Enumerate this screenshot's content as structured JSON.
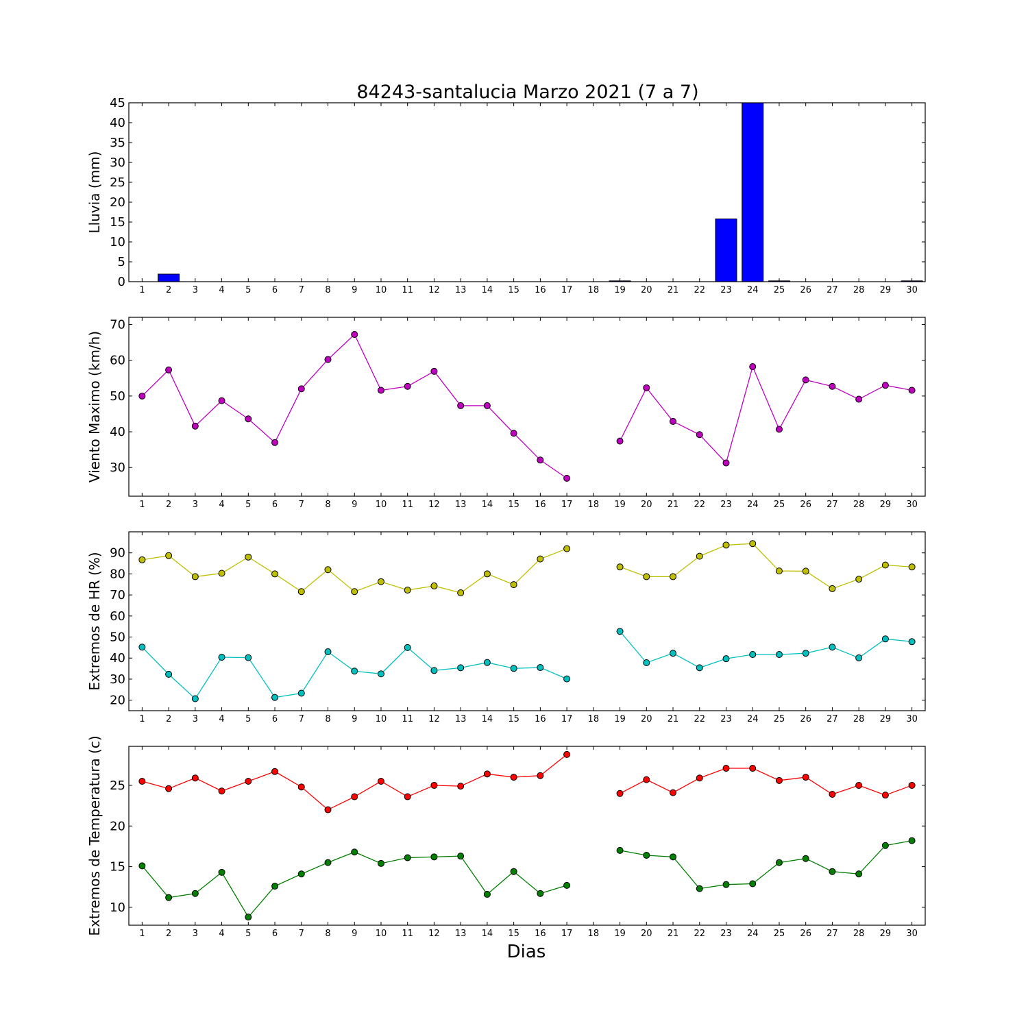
{
  "figure": {
    "title": "84243-santalucia Marzo 2021  (7 a 7)",
    "xlabel": "Dias"
  },
  "chart_data": [
    {
      "type": "bar",
      "ylabel": "Lluvia (mm)",
      "ylim": [
        0,
        45
      ],
      "yticks": [
        0,
        5,
        10,
        15,
        20,
        25,
        30,
        35,
        40,
        45
      ],
      "categories": [
        1,
        2,
        3,
        4,
        5,
        6,
        7,
        8,
        9,
        10,
        11,
        12,
        13,
        14,
        15,
        16,
        17,
        18,
        19,
        20,
        21,
        22,
        23,
        24,
        25,
        26,
        27,
        28,
        29,
        30
      ],
      "color": "#0000ff",
      "values": [
        0,
        1.9,
        0,
        0,
        0,
        0,
        0,
        0,
        0,
        0,
        0,
        0,
        0,
        0,
        0,
        0,
        0,
        0,
        0.2,
        0,
        0,
        0,
        15.8,
        45,
        0.2,
        0,
        0,
        0,
        0,
        0.2
      ]
    },
    {
      "type": "line",
      "ylabel": "Viento Maximo (km/h)",
      "ylim": [
        22,
        72
      ],
      "yticks": [
        30,
        40,
        50,
        60,
        70
      ],
      "x": [
        1,
        2,
        3,
        4,
        5,
        6,
        7,
        8,
        9,
        10,
        11,
        12,
        13,
        14,
        15,
        16,
        17,
        18,
        19,
        20,
        21,
        22,
        23,
        24,
        25,
        26,
        27,
        28,
        29,
        30
      ],
      "series": [
        {
          "color": "#bf00bf",
          "values": [
            50,
            57.3,
            41.6,
            48.7,
            43.6,
            37,
            52,
            60.2,
            67.2,
            51.6,
            52.7,
            56.9,
            47.3,
            47.3,
            39.6,
            32.1,
            27,
            null,
            37.4,
            52.3,
            42.9,
            39.2,
            31.3,
            58.2,
            40.7,
            54.5,
            52.7,
            49.1,
            53,
            51.6
          ]
        }
      ]
    },
    {
      "type": "line",
      "ylabel": "Extremos de HR (%)",
      "ylim": [
        15,
        100
      ],
      "yticks": [
        20,
        30,
        40,
        50,
        60,
        70,
        80,
        90
      ],
      "x": [
        1,
        2,
        3,
        4,
        5,
        6,
        7,
        8,
        9,
        10,
        11,
        12,
        13,
        14,
        15,
        16,
        17,
        18,
        19,
        20,
        21,
        22,
        23,
        24,
        25,
        26,
        27,
        28,
        29,
        30
      ],
      "series": [
        {
          "color": "#bfbf00",
          "values": [
            86.7,
            88.7,
            78.7,
            80.3,
            88,
            80,
            71.6,
            82,
            71.6,
            76.3,
            72.3,
            74.3,
            71,
            80,
            74.9,
            87.1,
            92,
            null,
            83.3,
            78.7,
            78.7,
            88.4,
            93.7,
            94.4,
            81.4,
            81.3,
            73,
            77.5,
            84.2,
            83.3
          ]
        },
        {
          "color": "#00bfbf",
          "values": [
            45.2,
            32.3,
            20.7,
            40.4,
            40.2,
            21.3,
            23.3,
            43,
            33.8,
            32.5,
            45,
            34.1,
            35.4,
            37.9,
            35.1,
            35.5,
            30.1,
            null,
            52.7,
            37.8,
            42.3,
            35.4,
            39.7,
            41.7,
            41.7,
            42.3,
            45.2,
            40.1,
            49.1,
            47.8
          ]
        }
      ]
    },
    {
      "type": "line",
      "ylabel": "Extremos de Temperatura (c)",
      "ylim": [
        7.8,
        29.8
      ],
      "yticks": [
        10,
        15,
        20,
        25
      ],
      "x": [
        1,
        2,
        3,
        4,
        5,
        6,
        7,
        8,
        9,
        10,
        11,
        12,
        13,
        14,
        15,
        16,
        17,
        18,
        19,
        20,
        21,
        22,
        23,
        24,
        25,
        26,
        27,
        28,
        29,
        30
      ],
      "series": [
        {
          "color": "#ff0000",
          "values": [
            25.5,
            24.6,
            25.9,
            24.3,
            25.5,
            26.7,
            24.8,
            22,
            23.6,
            25.5,
            23.6,
            25,
            24.9,
            26.4,
            26,
            26.2,
            28.8,
            null,
            24,
            25.7,
            24.1,
            25.9,
            27.1,
            27.1,
            25.6,
            26,
            23.9,
            25,
            23.8,
            25
          ]
        },
        {
          "color": "#007f00",
          "values": [
            15.1,
            11.2,
            11.7,
            14.3,
            8.8,
            12.6,
            14.1,
            15.5,
            16.8,
            15.4,
            16.1,
            16.2,
            16.3,
            11.6,
            14.4,
            11.7,
            12.7,
            null,
            17,
            16.4,
            16.2,
            12.3,
            12.8,
            12.9,
            15.5,
            16,
            14.4,
            14.1,
            17.6,
            18.2
          ]
        }
      ]
    }
  ]
}
